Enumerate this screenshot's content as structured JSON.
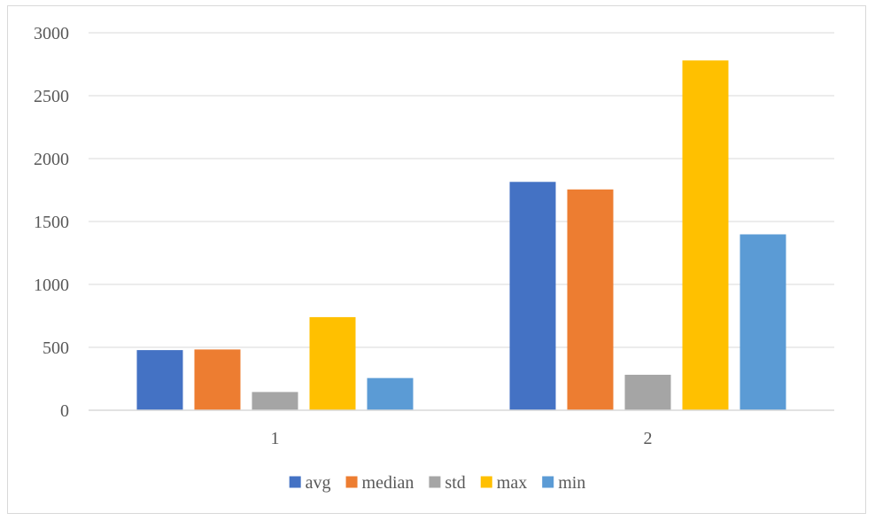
{
  "chart_data": {
    "type": "bar",
    "title": "",
    "xlabel": "",
    "ylabel": "",
    "categories": [
      "1",
      "2"
    ],
    "ylim": [
      0,
      3000
    ],
    "yticks": [
      0,
      500,
      1000,
      1500,
      2000,
      2500,
      3000
    ],
    "grid": true,
    "legend_position": "bottom",
    "series": [
      {
        "name": "avg",
        "color": "#4472C4",
        "values": [
          478,
          1815
        ]
      },
      {
        "name": "median",
        "color": "#ED7D31",
        "values": [
          483,
          1755
        ]
      },
      {
        "name": "std",
        "color": "#A5A5A5",
        "values": [
          145,
          282
        ]
      },
      {
        "name": "max",
        "color": "#FFC000",
        "values": [
          740,
          2780
        ]
      },
      {
        "name": "min",
        "color": "#5B9BD5",
        "values": [
          256,
          1398
        ]
      }
    ]
  }
}
